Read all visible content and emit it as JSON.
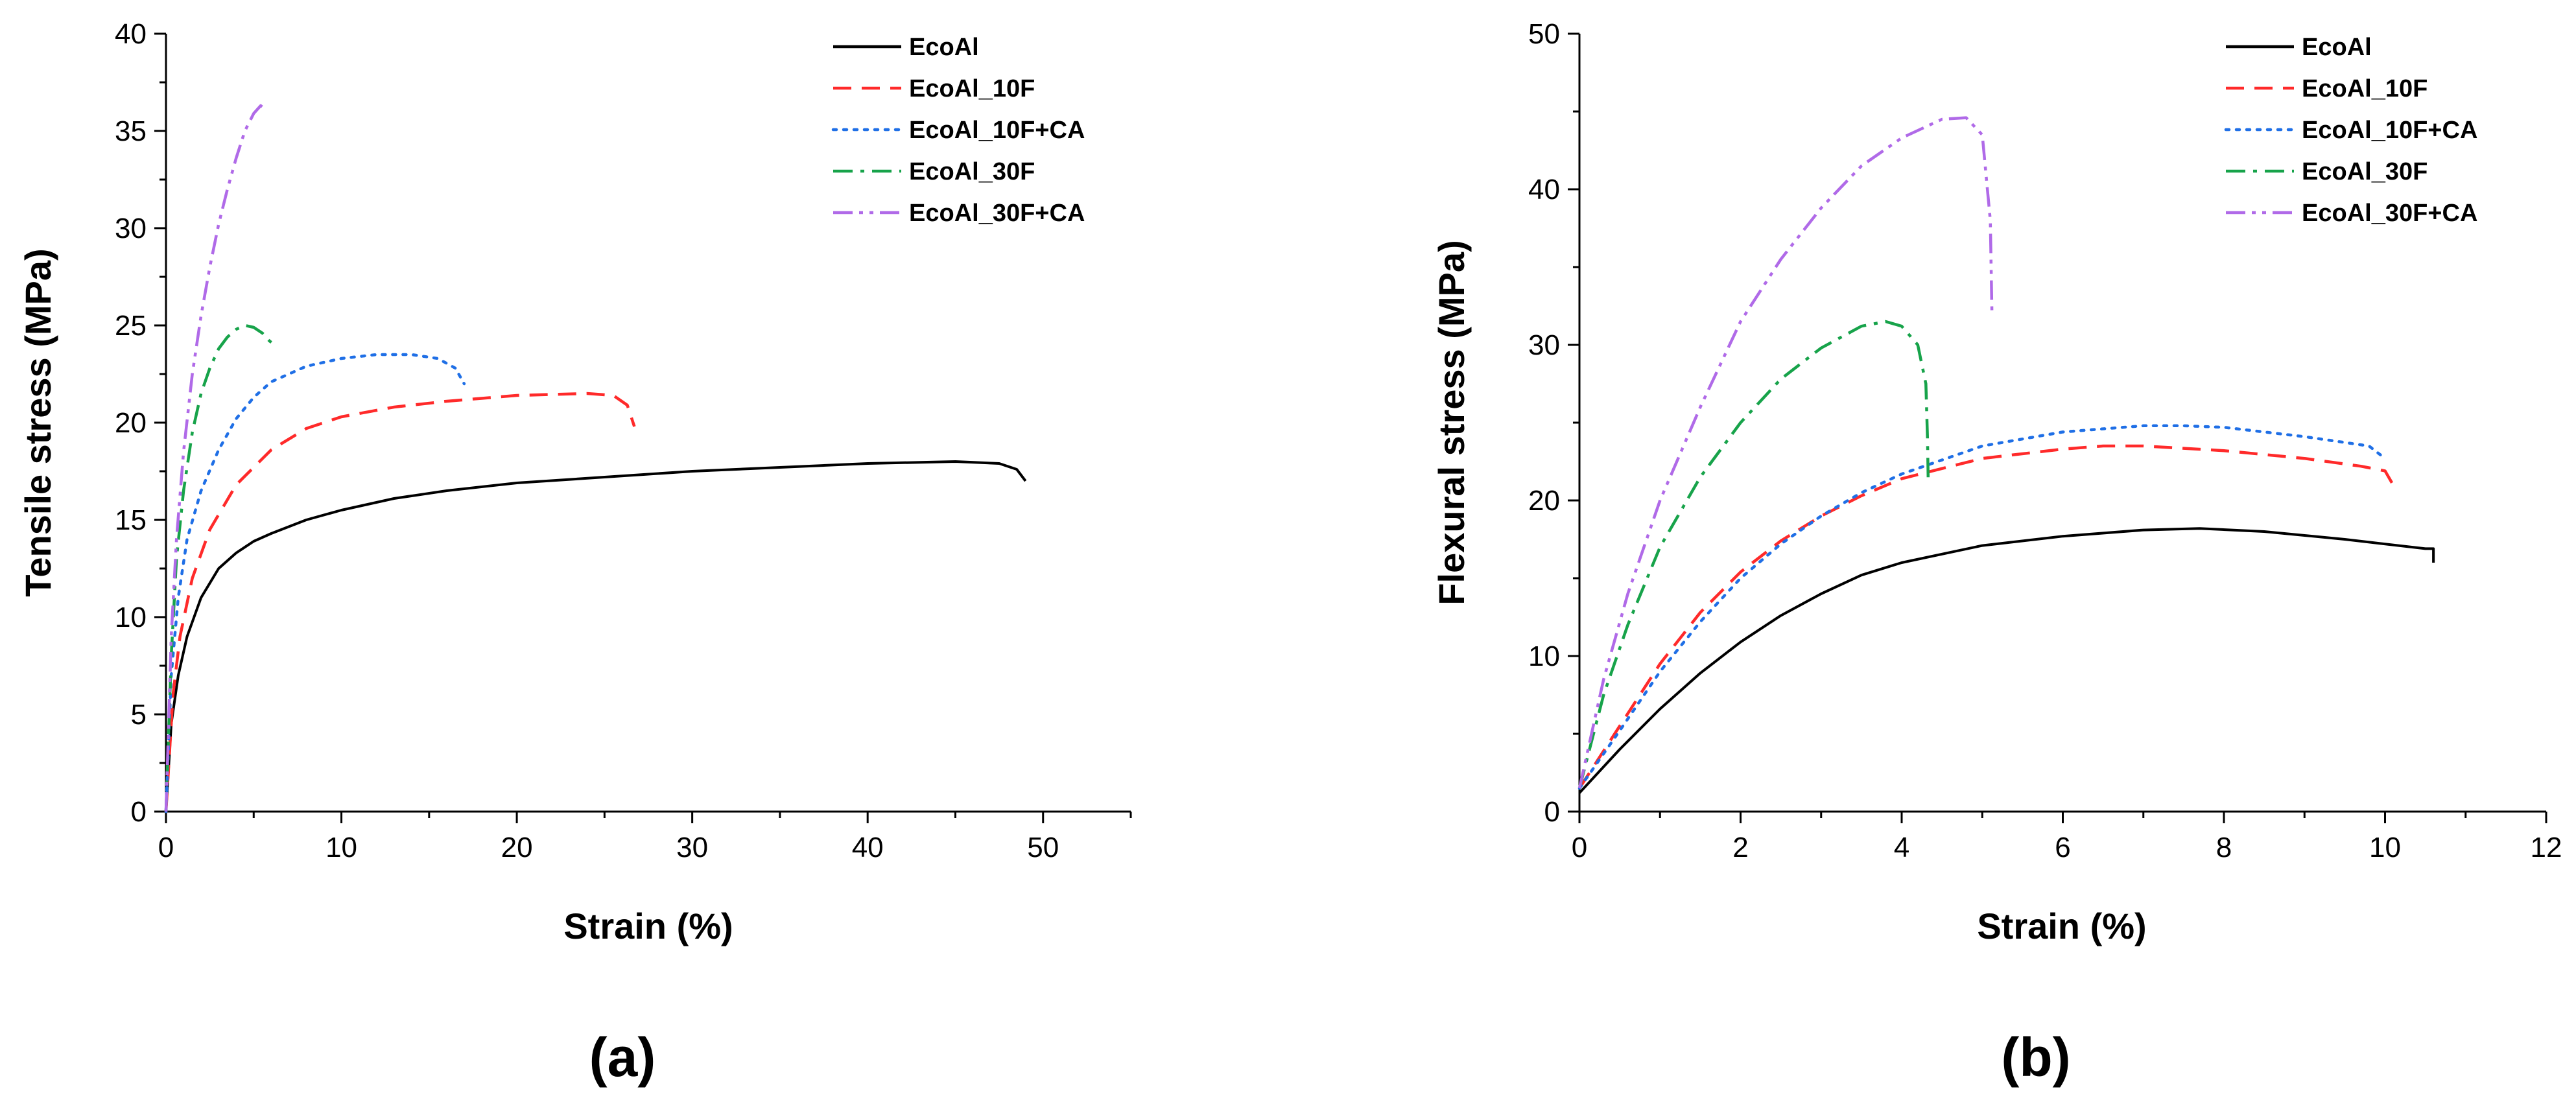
{
  "colors": {
    "EcoAl": "#000000",
    "EcoAl_10F": "#ff2a2a",
    "EcoAl_10F+CA": "#1f6fe6",
    "EcoAl_30F": "#17a34a",
    "EcoAl_30F+CA": "#b06ae8"
  },
  "chart_data": [
    {
      "id": "a",
      "type": "line",
      "panel_label": "(a)",
      "xlabel": "Strain (%)",
      "ylabel": "Tensile stress (MPa)",
      "xlim": [
        0,
        55
      ],
      "ylim": [
        0,
        40
      ],
      "xticks": [
        "0",
        "10",
        "20",
        "30",
        "40",
        "50"
      ],
      "yticks": [
        "0",
        "5",
        "10",
        "15",
        "20",
        "25",
        "30",
        "35",
        "40"
      ],
      "legend_position": "top-right",
      "series": [
        {
          "name": "EcoAl",
          "style": "solid",
          "x": [
            0,
            0.3,
            0.7,
            1.2,
            2,
            3,
            4,
            5,
            6,
            8,
            10,
            13,
            16,
            20,
            25,
            30,
            35,
            40,
            45,
            47.5,
            48.5,
            49
          ],
          "y": [
            0,
            4.5,
            7,
            9,
            11,
            12.5,
            13.3,
            13.9,
            14.3,
            15,
            15.5,
            16.1,
            16.5,
            16.9,
            17.2,
            17.5,
            17.7,
            17.9,
            18,
            17.9,
            17.6,
            17
          ]
        },
        {
          "name": "EcoAl_10F",
          "style": "dashed",
          "x": [
            0,
            0.4,
            0.8,
            1.5,
            2.5,
            4,
            6,
            8,
            10,
            13,
            16,
            20,
            24,
            25.5,
            26.3,
            26.7
          ],
          "y": [
            0,
            6,
            9,
            12,
            14.5,
            16.8,
            18.6,
            19.7,
            20.3,
            20.8,
            21.1,
            21.4,
            21.5,
            21.4,
            20.9,
            19.8
          ]
        },
        {
          "name": "EcoAl_10F+CA",
          "style": "dotted",
          "x": [
            0,
            0.3,
            0.7,
            1.2,
            2,
            3,
            4,
            5,
            6,
            8,
            10,
            12,
            14,
            15.5,
            16.5,
            17
          ],
          "y": [
            0,
            7,
            11,
            14,
            16.5,
            18.6,
            20.2,
            21.3,
            22.1,
            22.9,
            23.3,
            23.5,
            23.5,
            23.3,
            22.8,
            22
          ]
        },
        {
          "name": "EcoAl_30F",
          "style": "dashdot",
          "x": [
            0,
            0.3,
            0.6,
            1,
            1.5,
            2,
            2.5,
            3,
            3.5,
            4,
            4.5,
            5,
            5.5,
            5.9,
            6.2
          ],
          "y": [
            0,
            8,
            13,
            16.5,
            19.5,
            21.5,
            22.8,
            23.8,
            24.4,
            24.8,
            25,
            24.9,
            24.6,
            24.2,
            24
          ]
        },
        {
          "name": "EcoAl_30F+CA",
          "style": "dashdotdot",
          "x": [
            0,
            0.3,
            0.6,
            1,
            1.5,
            2,
            2.5,
            3,
            3.5,
            4,
            4.5,
            5,
            5.4,
            5.7
          ],
          "y": [
            0,
            9,
            14,
            18.5,
            22.5,
            25.5,
            28,
            30.2,
            32,
            33.6,
            35,
            35.9,
            36.3,
            36.1
          ]
        }
      ]
    },
    {
      "id": "b",
      "type": "line",
      "panel_label": "(b)",
      "xlabel": "Strain (%)",
      "ylabel": "Flexural stress (MPa)",
      "xlim": [
        0,
        12
      ],
      "ylim": [
        0,
        50
      ],
      "xticks": [
        "0",
        "2",
        "4",
        "6",
        "8",
        "10",
        "12"
      ],
      "yticks": [
        "0",
        "10",
        "20",
        "30",
        "40",
        "50"
      ],
      "legend_position": "top-right",
      "series": [
        {
          "name": "EcoAl",
          "style": "solid",
          "x": [
            0,
            0.5,
            1,
            1.5,
            2,
            2.5,
            3,
            3.5,
            4,
            5,
            6,
            7,
            7.7,
            8.5,
            9.5,
            10.5,
            10.6,
            10.6
          ],
          "y": [
            1.2,
            4,
            6.6,
            8.9,
            10.9,
            12.6,
            14,
            15.2,
            16,
            17.1,
            17.7,
            18.1,
            18.2,
            18,
            17.5,
            16.9,
            16.9,
            16
          ]
        },
        {
          "name": "EcoAl_10F",
          "style": "dashed",
          "x": [
            0,
            0.5,
            1,
            1.5,
            2,
            2.5,
            3,
            3.5,
            4,
            5,
            6,
            6.5,
            7,
            8,
            9,
            9.7,
            10,
            10.1
          ],
          "y": [
            1.5,
            5.5,
            9.5,
            12.8,
            15.4,
            17.4,
            19,
            20.3,
            21.4,
            22.7,
            23.3,
            23.5,
            23.5,
            23.2,
            22.7,
            22.2,
            21.9,
            21
          ]
        },
        {
          "name": "EcoAl_10F+CA",
          "style": "dotted",
          "x": [
            0,
            0.5,
            1,
            1.5,
            2,
            2.5,
            3,
            3.5,
            4,
            5,
            6,
            7,
            7.5,
            8,
            9,
            9.8,
            10
          ],
          "y": [
            1.5,
            5.2,
            9,
            12.2,
            15,
            17.2,
            19,
            20.5,
            21.7,
            23.5,
            24.4,
            24.8,
            24.8,
            24.7,
            24.1,
            23.5,
            22.7
          ]
        },
        {
          "name": "EcoAl_30F",
          "style": "dashdot",
          "x": [
            0,
            0.3,
            0.6,
            1,
            1.5,
            2,
            2.5,
            3,
            3.5,
            3.8,
            4,
            4.2,
            4.3,
            4.32,
            4.33
          ],
          "y": [
            1.5,
            7.5,
            12,
            17,
            21.5,
            25,
            27.8,
            29.8,
            31.2,
            31.5,
            31.2,
            30,
            27.5,
            24,
            21
          ]
        },
        {
          "name": "EcoAl_30F+CA",
          "style": "dashdotdot",
          "x": [
            0,
            0.3,
            0.6,
            1,
            1.5,
            2,
            2.5,
            3,
            3.5,
            4,
            4.5,
            4.8,
            5,
            5.1,
            5.12
          ],
          "y": [
            1.5,
            8.5,
            14,
            20,
            26,
            31.5,
            35.5,
            38.8,
            41.5,
            43.3,
            44.5,
            44.6,
            43.5,
            38,
            32
          ]
        }
      ]
    }
  ]
}
